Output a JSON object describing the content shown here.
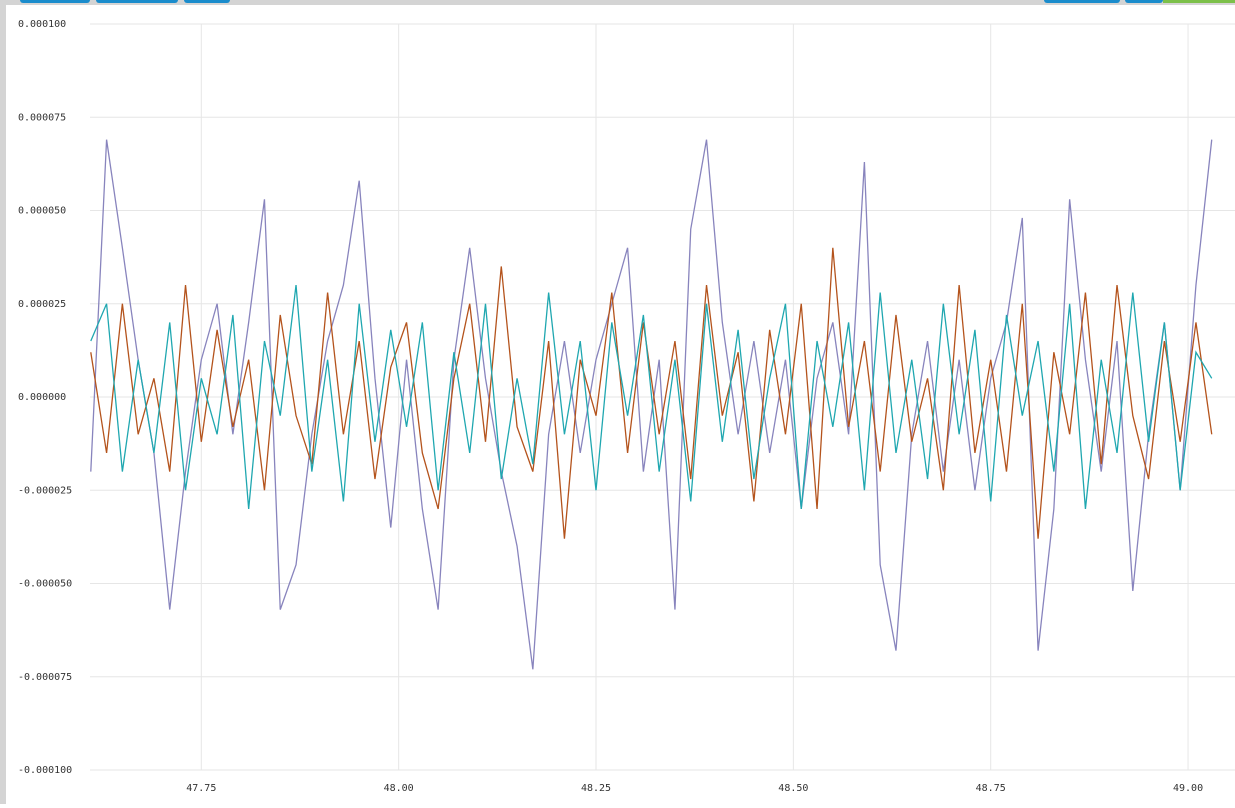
{
  "chart_data": {
    "type": "line",
    "x": [
      47.61,
      47.63,
      47.65,
      47.67,
      47.69,
      47.71,
      47.73,
      47.75,
      47.77,
      47.79,
      47.81,
      47.83,
      47.85,
      47.87,
      47.89,
      47.91,
      47.93,
      47.95,
      47.97,
      47.99,
      48.01,
      48.03,
      48.05,
      48.07,
      48.09,
      48.11,
      48.13,
      48.15,
      48.17,
      48.19,
      48.21,
      48.23,
      48.25,
      48.27,
      48.29,
      48.31,
      48.33,
      48.35,
      48.37,
      48.39,
      48.41,
      48.43,
      48.45,
      48.47,
      48.49,
      48.51,
      48.53,
      48.55,
      48.57,
      48.59,
      48.61,
      48.63,
      48.65,
      48.67,
      48.69,
      48.71,
      48.73,
      48.75,
      48.77,
      48.79,
      48.81,
      48.83,
      48.85,
      48.87,
      48.89,
      48.91,
      48.93,
      48.95,
      48.97,
      48.99,
      49.01,
      49.03
    ],
    "series": [
      {
        "color": "#8884bd",
        "values": [
          -2e-05,
          6.9e-05,
          4e-05,
          1e-05,
          -1.5e-05,
          -5.7e-05,
          -2e-05,
          1e-05,
          2.5e-05,
          -1e-05,
          2e-05,
          5.3e-05,
          -5.7e-05,
          -4.5e-05,
          -1e-05,
          1.5e-05,
          3e-05,
          5.8e-05,
          5e-06,
          -3.5e-05,
          1e-05,
          -3e-05,
          -5.7e-05,
          1e-05,
          4e-05,
          5e-06,
          -2e-05,
          -4e-05,
          -7.3e-05,
          -1e-05,
          1.5e-05,
          -1.5e-05,
          1e-05,
          2.5e-05,
          4e-05,
          -2e-05,
          1e-05,
          -5.7e-05,
          4.5e-05,
          6.9e-05,
          2e-05,
          -1e-05,
          1.5e-05,
          -1.5e-05,
          1e-05,
          -3e-05,
          5e-06,
          2e-05,
          -1e-05,
          6.3e-05,
          -4.5e-05,
          -6.8e-05,
          -1e-05,
          1.5e-05,
          -2e-05,
          1e-05,
          -2.5e-05,
          5e-06,
          2e-05,
          4.8e-05,
          -6.8e-05,
          -3e-05,
          5.3e-05,
          1e-05,
          -2e-05,
          1.5e-05,
          -5.2e-05,
          -1e-05,
          2e-05,
          -2.5e-05,
          3e-05,
          6.9e-05
        ]
      },
      {
        "color": "#b4531c",
        "values": [
          1.2e-05,
          -1.5e-05,
          2.5e-05,
          -1e-05,
          5e-06,
          -2e-05,
          3e-05,
          -1.2e-05,
          1.8e-05,
          -8e-06,
          1e-05,
          -2.5e-05,
          2.2e-05,
          -5e-06,
          -1.8e-05,
          2.8e-05,
          -1e-05,
          1.5e-05,
          -2.2e-05,
          8e-06,
          2e-05,
          -1.5e-05,
          -3e-05,
          5e-06,
          2.5e-05,
          -1.2e-05,
          3.5e-05,
          -8e-06,
          -2e-05,
          1.5e-05,
          -3.8e-05,
          1e-05,
          -5e-06,
          2.8e-05,
          -1.5e-05,
          2e-05,
          -1e-05,
          1.5e-05,
          -2.2e-05,
          3e-05,
          -5e-06,
          1.2e-05,
          -2.8e-05,
          1.8e-05,
          -1e-05,
          2.5e-05,
          -3e-05,
          4e-05,
          -8e-06,
          1.5e-05,
          -2e-05,
          2.2e-05,
          -1.2e-05,
          5e-06,
          -2.5e-05,
          3e-05,
          -1.5e-05,
          1e-05,
          -2e-05,
          2.5e-05,
          -3.8e-05,
          1.2e-05,
          -1e-05,
          2.8e-05,
          -1.8e-05,
          3e-05,
          -5e-06,
          -2.2e-05,
          1.5e-05,
          -1.2e-05,
          2e-05,
          -1e-05
        ]
      },
      {
        "color": "#1fa7b0",
        "values": [
          1.5e-05,
          2.5e-05,
          -2e-05,
          1e-05,
          -1.5e-05,
          2e-05,
          -2.5e-05,
          5e-06,
          -1e-05,
          2.2e-05,
          -3e-05,
          1.5e-05,
          -5e-06,
          3e-05,
          -2e-05,
          1e-05,
          -2.8e-05,
          2.5e-05,
          -1.2e-05,
          1.8e-05,
          -8e-06,
          2e-05,
          -2.5e-05,
          1.2e-05,
          -1.5e-05,
          2.5e-05,
          -2.2e-05,
          5e-06,
          -1.8e-05,
          2.8e-05,
          -1e-05,
          1.5e-05,
          -2.5e-05,
          2e-05,
          -5e-06,
          2.2e-05,
          -2e-05,
          1e-05,
          -2.8e-05,
          2.5e-05,
          -1.2e-05,
          1.8e-05,
          -2.2e-05,
          5e-06,
          2.5e-05,
          -3e-05,
          1.5e-05,
          -8e-06,
          2e-05,
          -2.5e-05,
          2.8e-05,
          -1.5e-05,
          1e-05,
          -2.2e-05,
          2.5e-05,
          -1e-05,
          1.8e-05,
          -2.8e-05,
          2.2e-05,
          -5e-06,
          1.5e-05,
          -2e-05,
          2.5e-05,
          -3e-05,
          1e-05,
          -1.5e-05,
          2.8e-05,
          -1.2e-05,
          2e-05,
          -2.5e-05,
          1.2e-05,
          5e-06
        ]
      }
    ],
    "xlim": [
      47.609,
      49.043
    ],
    "ylim": [
      -0.0001,
      0.0001
    ],
    "xticks": [
      47.75,
      {
        "value": 48,
        "label": "48.00"
      },
      48.25,
      {
        "value": 48.5,
        "label": "48.50"
      },
      48.75,
      {
        "value": 49,
        "label": "49.00"
      }
    ],
    "yticks": [
      {
        "value": -0.0001,
        "label": "-0.000100"
      },
      {
        "value": -7.5e-05,
        "label": "-0.000075"
      },
      {
        "value": -5e-05,
        "label": "-0.000050"
      },
      {
        "value": -2.5e-05,
        "label": "-0.000025"
      },
      {
        "value": 0,
        "label": "0.000000"
      },
      {
        "value": 2.5e-05,
        "label": "0.000025"
      },
      {
        "value": 5e-05,
        "label": "0.000050"
      },
      {
        "value": 7.5e-05,
        "label": "0.000075"
      },
      {
        "value": 0.0001,
        "label": "0.000100"
      }
    ],
    "grid": true
  }
}
